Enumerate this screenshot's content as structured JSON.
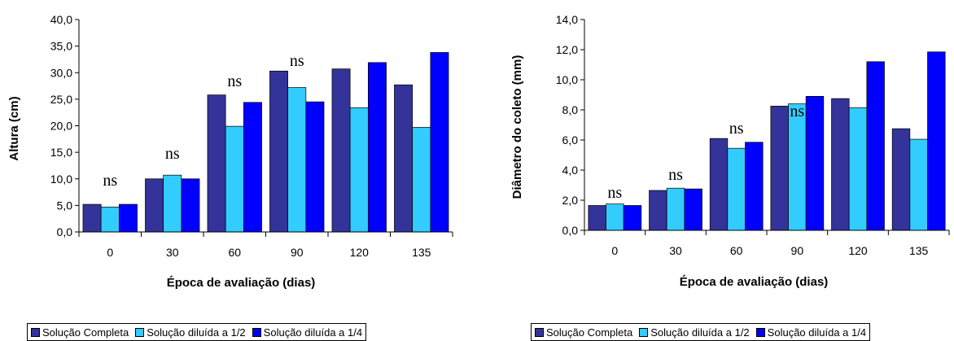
{
  "colors": {
    "series": [
      "#333399",
      "#33CCFF",
      "#0000FF"
    ]
  },
  "legend_labels": [
    "Solução Completa",
    "Solução diluída a 1/2",
    "Solução diluída a 1/4"
  ],
  "chart_data": [
    {
      "type": "bar",
      "xlabel": "Época de avaliação (dias)",
      "ylabel": "Altura (cm)",
      "ylim": [
        0,
        40
      ],
      "yticks": [
        "0,0",
        "5,0",
        "10,0",
        "15,0",
        "20,0",
        "25,0",
        "30,0",
        "35,0",
        "40,0"
      ],
      "categories": [
        "0",
        "30",
        "60",
        "90",
        "120",
        "135"
      ],
      "series": [
        {
          "name": "Solução Completa",
          "values": [
            5.2,
            10.0,
            25.8,
            30.3,
            30.7,
            27.7
          ]
        },
        {
          "name": "Solução diluída a 1/2",
          "values": [
            4.7,
            10.7,
            19.9,
            27.2,
            23.4,
            19.7
          ]
        },
        {
          "name": "Solução diluída a 1/4",
          "values": [
            5.2,
            10.0,
            24.4,
            24.5,
            31.9,
            33.8
          ]
        }
      ],
      "annotations": [
        "ns",
        "ns",
        "ns",
        "ns",
        "",
        "",
        "",
        "",
        "",
        "",
        "",
        "",
        "",
        ""
      ]
    },
    {
      "type": "bar",
      "xlabel": "Época de avaliação (dias)",
      "ylabel": "Diâmetro do coleto (mm)",
      "ylim": [
        0,
        14
      ],
      "yticks": [
        "0,0",
        "2,0",
        "4,0",
        "6,0",
        "8,0",
        "10,0",
        "12,0",
        "14,0"
      ],
      "categories": [
        "0",
        "30",
        "60",
        "90",
        "120",
        "135"
      ],
      "series": [
        {
          "name": "Solução Completa",
          "values": [
            1.65,
            2.65,
            6.1,
            8.25,
            8.75,
            6.75
          ]
        },
        {
          "name": "Solução diluída a 1/2",
          "values": [
            1.75,
            2.8,
            5.45,
            8.4,
            8.15,
            6.05
          ]
        },
        {
          "name": "Solução diluída a 1/4",
          "values": [
            1.65,
            2.75,
            5.85,
            8.9,
            11.2,
            11.85
          ]
        }
      ],
      "annotations": [
        "ns",
        "ns",
        "ns",
        "ns",
        "",
        "",
        "",
        "",
        "",
        "",
        "",
        ""
      ]
    }
  ]
}
